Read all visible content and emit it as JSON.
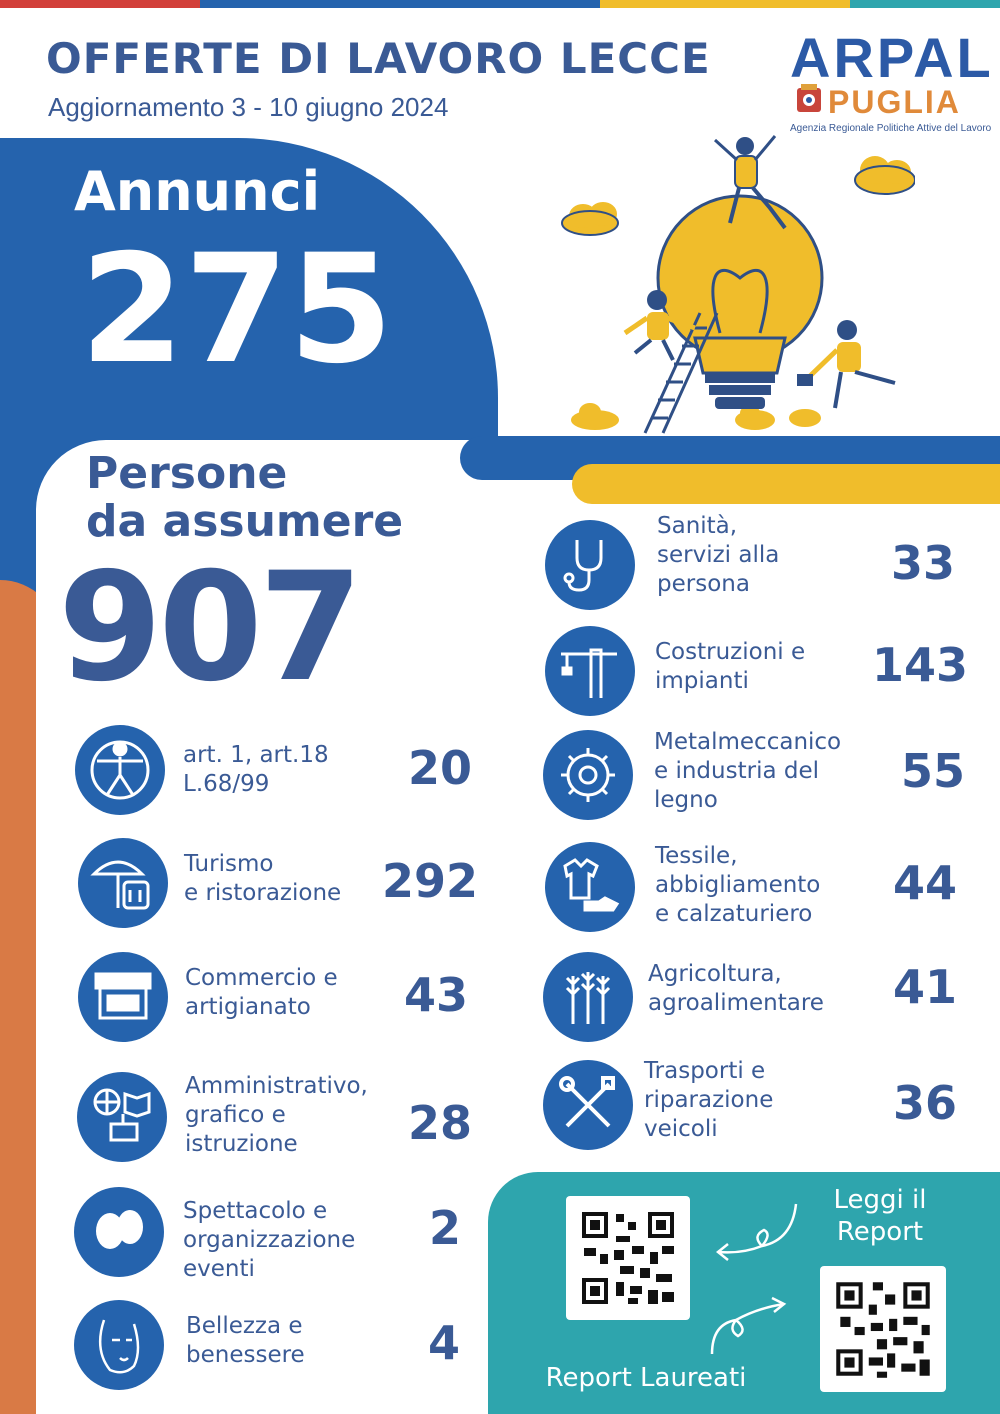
{
  "header": {
    "title": "OFFERTE DI LAVORO LECCE",
    "subtitle": "Aggiornamento 3 - 10 giugno 2024"
  },
  "logo": {
    "arpal": "ARPAL",
    "puglia": "PUGLIA",
    "tagline": "Agenzia Regionale Politiche Attive del Lavoro"
  },
  "annunci": {
    "label": "Annunci",
    "value": "275"
  },
  "persone": {
    "label_line1": "Persone",
    "label_line2": "da assumere",
    "value": "907"
  },
  "sectors_left": [
    {
      "icon": "accessibility-icon",
      "label_lines": [
        "art. 1, art.18",
        "L.68/99"
      ],
      "value": "20"
    },
    {
      "icon": "umbrella-restaurant-icon",
      "label_lines": [
        "Turismo",
        "e ristorazione"
      ],
      "value": "292"
    },
    {
      "icon": "market-stall-icon",
      "label_lines": [
        "Commercio e",
        "artigianato"
      ],
      "value": "43"
    },
    {
      "icon": "globe-book-icon",
      "label_lines": [
        "Amministrativo,",
        "grafico e",
        "istruzione"
      ],
      "value": "28"
    },
    {
      "icon": "theatre-masks-icon",
      "label_lines": [
        "Spettacolo e",
        "organizzazione",
        "eventi"
      ],
      "value": "2"
    },
    {
      "icon": "face-beauty-icon",
      "label_lines": [
        "Bellezza e",
        "benessere"
      ],
      "value": "4"
    }
  ],
  "sectors_right": [
    {
      "icon": "stethoscope-icon",
      "label_lines": [
        "Sanità,",
        "servizi alla",
        "persona"
      ],
      "value": "33"
    },
    {
      "icon": "crane-icon",
      "label_lines": [
        "Costruzioni e",
        "impianti"
      ],
      "value": "143"
    },
    {
      "icon": "gear-wrench-icon",
      "label_lines": [
        "Metalmeccanico",
        "e industria del",
        "legno"
      ],
      "value": "55"
    },
    {
      "icon": "tshirt-shoe-icon",
      "label_lines": [
        "Tessile,",
        "abbigliamento",
        "e calzaturiero"
      ],
      "value": "44"
    },
    {
      "icon": "wheat-icon",
      "label_lines": [
        "Agricoltura,",
        "agroalimentare"
      ],
      "value": "41"
    },
    {
      "icon": "tools-icon",
      "label_lines": [
        "Trasporti e",
        "riparazione",
        "veicoli"
      ],
      "value": "36"
    }
  ],
  "report": {
    "leggi_line1": "Leggi il",
    "leggi_line2": "Report",
    "laureati": "Report Laureati"
  },
  "colors": {
    "blue": "#2563ad",
    "navy_text": "#3a5a95",
    "orange": "#d97a45",
    "yellow": "#f0bd2b",
    "teal": "#2ea5ad"
  }
}
